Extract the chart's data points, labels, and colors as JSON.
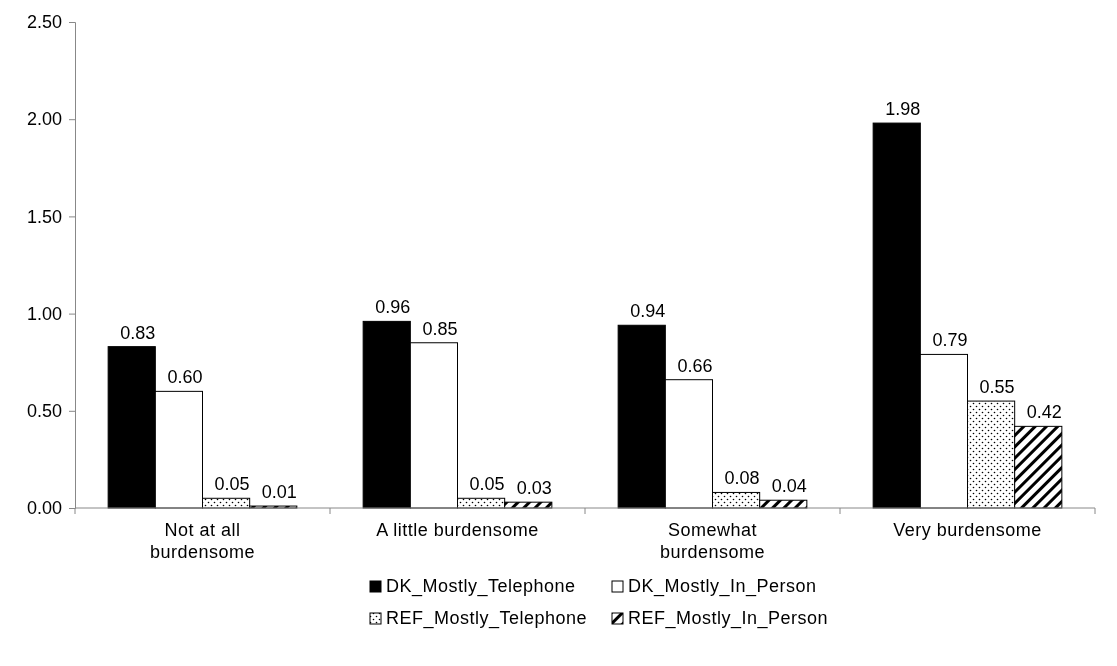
{
  "chart_data": {
    "type": "bar",
    "categories": [
      "Not at all burdensome",
      "A little burdensome",
      "Somewhat burdensome",
      "Very burdensome"
    ],
    "series": [
      {
        "name": "DK_Mostly_Telephone",
        "color": "#000000",
        "values": [
          0.83,
          0.96,
          0.94,
          1.98
        ],
        "value_labels": [
          "0.83",
          "0.96",
          "0.94",
          "1.98"
        ]
      },
      {
        "name": "DK_Mostly_In_Person",
        "color": "#ffffff",
        "values": [
          0.6,
          0.85,
          0.66,
          0.79
        ],
        "value_labels": [
          "0.60",
          "0.85",
          "0.66",
          "0.79"
        ]
      },
      {
        "name": "REF_Mostly_Telephone",
        "color": "#000000",
        "values": [
          0.05,
          0.05,
          0.08,
          0.55
        ],
        "value_labels": [
          "0.05",
          "0.05",
          "0.08",
          "0.55"
        ]
      },
      {
        "name": "REF_Mostly_In_Person",
        "color": "#000000",
        "values": [
          0.01,
          0.03,
          0.04,
          0.42
        ],
        "value_labels": [
          "0.01",
          "0.03",
          "0.04",
          "0.42"
        ]
      }
    ],
    "ylim": [
      0,
      2.5
    ],
    "yticks": [
      {
        "value": 0,
        "label": "0.00"
      },
      {
        "value": 0.5,
        "label": "0.50"
      },
      {
        "value": 1,
        "label": "1.00"
      },
      {
        "value": 1.5,
        "label": "1.50"
      },
      {
        "value": 2,
        "label": "2.00"
      },
      {
        "value": 2.5,
        "label": "2.50"
      }
    ],
    "grid": false,
    "legend": "bottom"
  }
}
